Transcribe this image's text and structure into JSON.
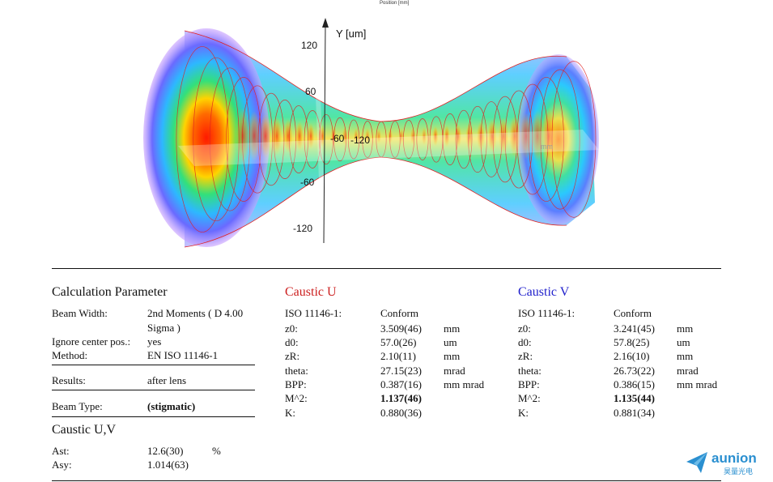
{
  "figure": {
    "caption_top": "Position [mm]",
    "y_axis_label": "Y [um]",
    "y_ticks": [
      "120",
      "60",
      "-60",
      "-120"
    ],
    "x_ticks_near_center": [
      "-60",
      "-120"
    ],
    "faint_unit": "mm"
  },
  "calc": {
    "title": "Calculation Parameter",
    "rows": [
      {
        "label": "Beam Width:",
        "value_line1": "2nd Moments ( D 4.00",
        "value_line2": "Sigma  )"
      },
      {
        "label": "Ignore center pos.:",
        "value": "yes"
      },
      {
        "label": "Method:",
        "value": "EN ISO 11146-1"
      }
    ],
    "results_label": "Results:",
    "results_value": "after lens",
    "beam_type_label": "Beam Type:",
    "beam_type_value": "(stigmatic)"
  },
  "caustic_uv": {
    "title": "Caustic U,V",
    "rows": [
      {
        "label": "Ast:",
        "value": "12.6(30)",
        "unit": "%"
      },
      {
        "label": "Asy:",
        "value": "1.014(63)",
        "unit": ""
      }
    ]
  },
  "caustic_u": {
    "title": "Caustic U",
    "title_color": "#cc1f1f",
    "rows": [
      {
        "label": "ISO 11146-1:",
        "value": "Conform",
        "unit": ""
      },
      {
        "label": "z0:",
        "value": "3.509(46)",
        "unit": "mm"
      },
      {
        "label": "d0:",
        "value": "57.0(26)",
        "unit": "um"
      },
      {
        "label": "zR:",
        "value": "2.10(11)",
        "unit": "mm"
      },
      {
        "label": "theta:",
        "value": "27.15(23)",
        "unit": "mrad"
      },
      {
        "label": "BPP:",
        "value": "0.387(16)",
        "unit": "mm mrad"
      },
      {
        "label": "M^2:",
        "value": "1.137(46)",
        "unit": ""
      },
      {
        "label": "K:",
        "value": "0.880(36)",
        "unit": ""
      }
    ]
  },
  "caustic_v": {
    "title": "Caustic V",
    "title_color": "#1f1fcc",
    "rows": [
      {
        "label": "ISO 11146-1:",
        "value": "Conform",
        "unit": ""
      },
      {
        "label": "z0:",
        "value": "3.241(45)",
        "unit": "mm"
      },
      {
        "label": "d0:",
        "value": "57.8(25)",
        "unit": "um"
      },
      {
        "label": "zR:",
        "value": "2.16(10)",
        "unit": "mm"
      },
      {
        "label": "theta:",
        "value": "26.73(22)",
        "unit": "mrad"
      },
      {
        "label": "BPP:",
        "value": "0.386(15)",
        "unit": "mm mrad"
      },
      {
        "label": "M^2:",
        "value": "1.135(44)",
        "unit": ""
      },
      {
        "label": "K:",
        "value": "0.881(34)",
        "unit": ""
      }
    ]
  },
  "logo": {
    "name": "aunion",
    "subtitle": "昊量光电",
    "color": "#2a8fd0"
  }
}
